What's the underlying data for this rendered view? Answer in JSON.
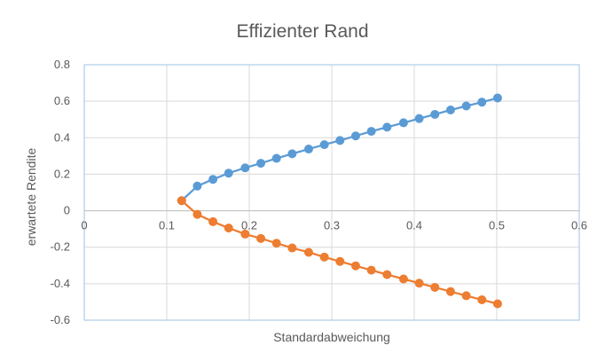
{
  "chart_data": {
    "type": "scatter",
    "title": "Effizienter Rand",
    "xlabel": "Standardabweichung",
    "ylabel": "erwartete Rendite",
    "xlim": [
      0,
      0.6
    ],
    "ylim": [
      -0.6,
      0.8
    ],
    "x_ticks": [
      "0",
      "0.1",
      "0.2",
      "0.3",
      "0.4",
      "0.5",
      "0.6"
    ],
    "y_ticks": [
      "-0.6",
      "-0.4",
      "-0.2",
      "0",
      "0.2",
      "0.4",
      "0.6",
      "0.8"
    ],
    "grid": true,
    "legend": "none",
    "series": [
      {
        "color": "#5B9BD5",
        "points": [
          [
            0.118,
            0.055
          ],
          [
            0.137,
            0.135
          ],
          [
            0.156,
            0.172
          ],
          [
            0.175,
            0.206
          ],
          [
            0.195,
            0.235
          ],
          [
            0.214,
            0.26
          ],
          [
            0.233,
            0.287
          ],
          [
            0.252,
            0.312
          ],
          [
            0.272,
            0.338
          ],
          [
            0.291,
            0.362
          ],
          [
            0.31,
            0.385
          ],
          [
            0.329,
            0.41
          ],
          [
            0.348,
            0.435
          ],
          [
            0.367,
            0.458
          ],
          [
            0.387,
            0.482
          ],
          [
            0.406,
            0.505
          ],
          [
            0.425,
            0.528
          ],
          [
            0.444,
            0.552
          ],
          [
            0.463,
            0.574
          ],
          [
            0.482,
            0.595
          ],
          [
            0.501,
            0.618
          ]
        ]
      },
      {
        "color": "#ED7D31",
        "points": [
          [
            0.118,
            0.055
          ],
          [
            0.137,
            -0.02
          ],
          [
            0.156,
            -0.06
          ],
          [
            0.175,
            -0.095
          ],
          [
            0.195,
            -0.128
          ],
          [
            0.214,
            -0.152
          ],
          [
            0.233,
            -0.178
          ],
          [
            0.252,
            -0.204
          ],
          [
            0.272,
            -0.228
          ],
          [
            0.291,
            -0.254
          ],
          [
            0.31,
            -0.278
          ],
          [
            0.329,
            -0.302
          ],
          [
            0.348,
            -0.326
          ],
          [
            0.367,
            -0.35
          ],
          [
            0.387,
            -0.374
          ],
          [
            0.406,
            -0.397
          ],
          [
            0.425,
            -0.42
          ],
          [
            0.444,
            -0.443
          ],
          [
            0.463,
            -0.466
          ],
          [
            0.482,
            -0.488
          ],
          [
            0.501,
            -0.51
          ]
        ]
      }
    ]
  }
}
